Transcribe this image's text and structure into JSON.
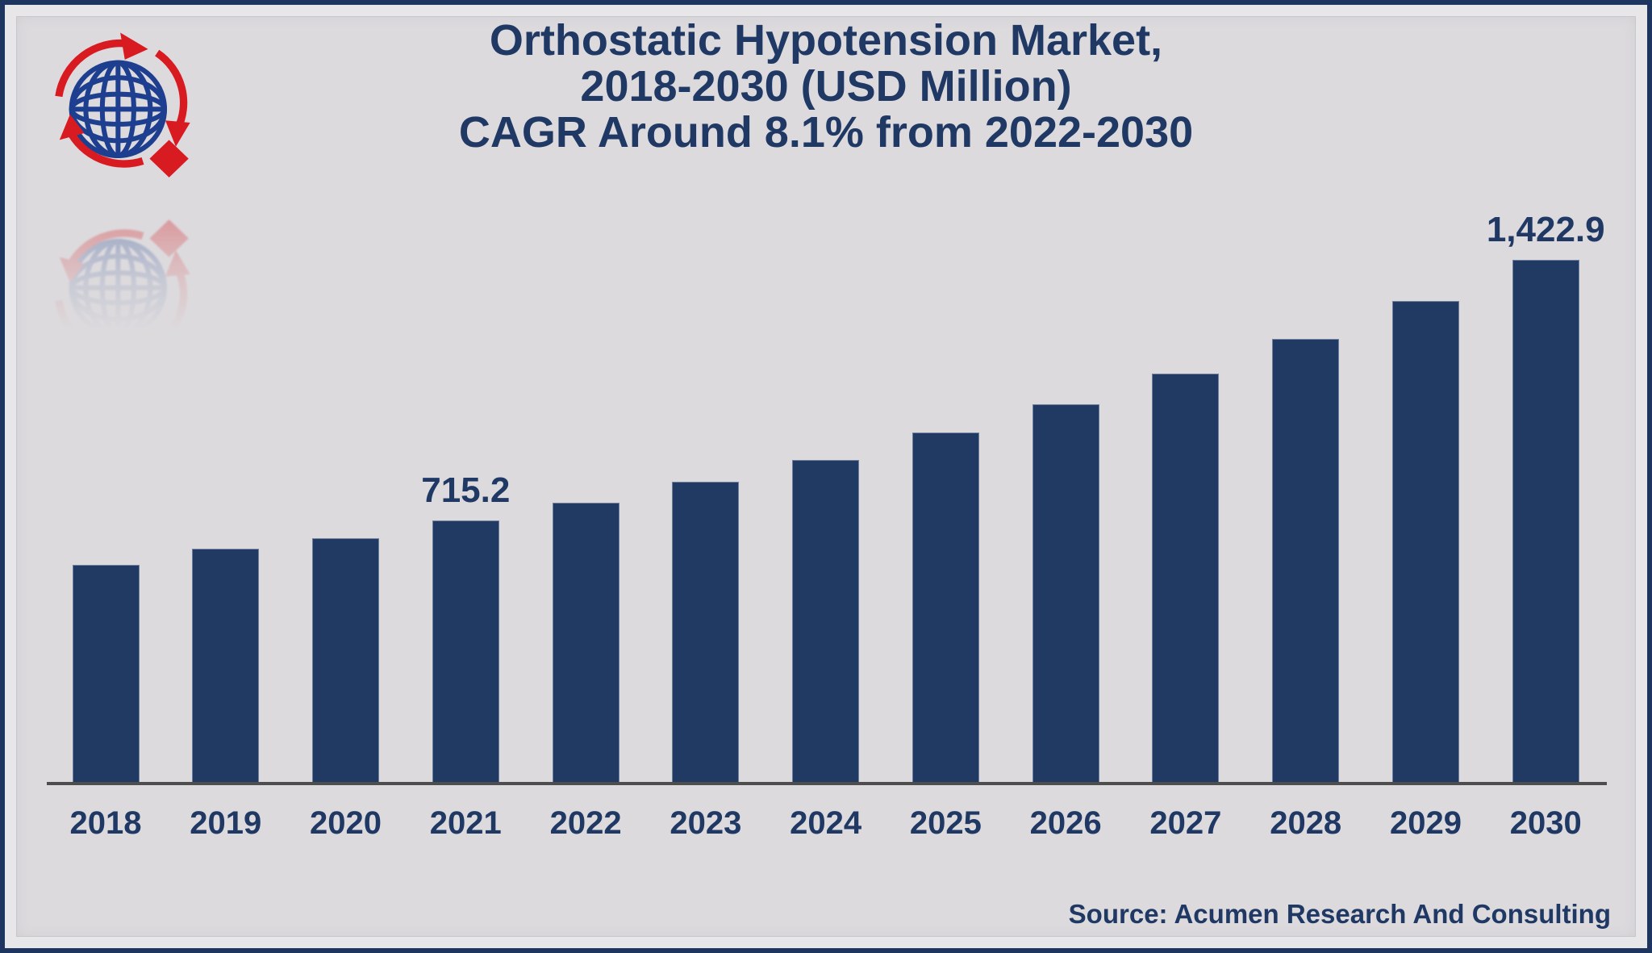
{
  "title": {
    "lines": [
      "Orthostatic Hypotension Market,",
      "2018-2030 (USD Million)",
      "CAGR Around 8.1% from 2022-2030"
    ]
  },
  "footer": {
    "source": "Source: Acumen Research And Consulting"
  },
  "icons": {
    "logo": "globe-with-rotation-arrows-and-diamond-logo"
  },
  "colors": {
    "bar": "#203a64",
    "text": "#1f3864",
    "background": "#dcdadd",
    "frame_border": "#1e3560",
    "axis_line": "#4d4d4d",
    "logo_blue": "#1e3f8f",
    "logo_red": "#d81b21"
  },
  "chart_data": {
    "type": "bar",
    "title": "Orthostatic Hypotension Market, 2018-2030 (USD Million), CAGR Around 8.1% from 2022-2030",
    "xlabel": "",
    "ylabel": "",
    "categories": [
      "2018",
      "2019",
      "2020",
      "2021",
      "2022",
      "2023",
      "2024",
      "2025",
      "2026",
      "2027",
      "2028",
      "2029",
      "2030"
    ],
    "values": [
      595.0,
      640.3,
      667.8,
      715.2,
      763.4,
      820.9,
      880.9,
      953.7,
      1030.5,
      1113.9,
      1207.5,
      1310.8,
      1422.9
    ],
    "value_labels": {
      "2021": "715.2",
      "2030": "1,422.9"
    },
    "ylim": [
      0,
      1500
    ],
    "grid": false,
    "legend": false,
    "axis_baseline_shown": true
  }
}
